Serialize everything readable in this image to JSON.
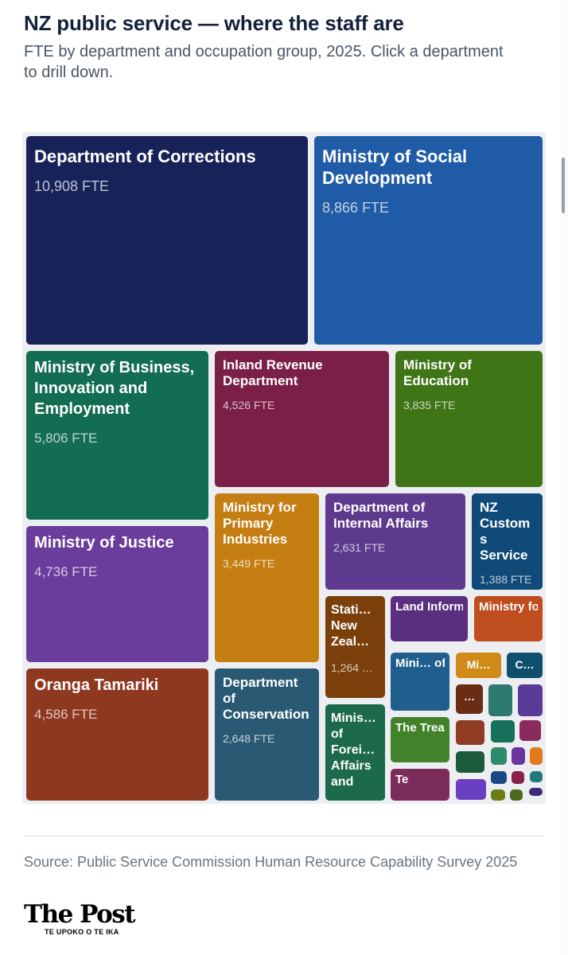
{
  "header": {
    "title": "NZ public service — where the staff are",
    "subtitle": "FTE by department and occupation group, 2025. Click a department to drill down."
  },
  "chart_data": {
    "type": "treemap",
    "unit": "FTE",
    "items": [
      {
        "name": "Department of Corrections",
        "label": "Department of Corrections",
        "value": 10908,
        "value_label": "10,908 FTE",
        "color": "#172259"
      },
      {
        "name": "Ministry of Social Development",
        "label": "Ministry of Social Development",
        "value": 8866,
        "value_label": "8,866 FTE",
        "color": "#1f5ba6"
      },
      {
        "name": "Ministry of Business, Innovation and Employment",
        "label": "Ministry of Business, Innovation and Employment",
        "value": 5806,
        "value_label": "5,806 FTE",
        "color": "#136d52"
      },
      {
        "name": "Inland Revenue Department",
        "label": "Inland Revenue Department",
        "value": 4526,
        "value_label": "4,526 FTE",
        "color": "#7a1f47"
      },
      {
        "name": "Ministry of Education",
        "label": "Ministry of Education",
        "value": 3835,
        "value_label": "3,835 FTE",
        "color": "#3f7517"
      },
      {
        "name": "Ministry of Justice",
        "label": "Ministry of Justice",
        "value": 4736,
        "value_label": "4,736 FTE",
        "color": "#6a3c9c"
      },
      {
        "name": "Ministry for Primary Industries",
        "label": "Ministry for Primary Industries",
        "value": 3449,
        "value_label": "3,449 FTE",
        "color": "#c47e12"
      },
      {
        "name": "Department of Internal Affairs",
        "label": "Department of Internal Affairs",
        "value": 2631,
        "value_label": "2,631 FTE",
        "color": "#5d3a8e"
      },
      {
        "name": "NZ Customs Service",
        "label": "NZ Customs Service",
        "value": 1388,
        "value_label": "1,388 FTE",
        "color": "#0f4a78"
      },
      {
        "name": "Oranga Tamariki",
        "label": "Oranga Tamariki",
        "value": 4586,
        "value_label": "4,586 FTE",
        "color": "#8f3820"
      },
      {
        "name": "Department of Conservation",
        "label": "Department of Conservation",
        "value": 2648,
        "value_label": "2,648 FTE",
        "color": "#2a5a73"
      },
      {
        "name": "Stati… New Zeal…",
        "label": "Stati… New Zeal…",
        "value": 1264,
        "value_label": "1,264 …",
        "color": "#7b3f0c"
      },
      {
        "name": "Land Informa…",
        "label": "Land Informa…",
        "value": null,
        "value_label": "",
        "color": "#5a2f80"
      },
      {
        "name": "Ministry for the",
        "label": "Ministry for the",
        "value": null,
        "value_label": "",
        "color": "#c04d1e"
      },
      {
        "name": "Mini… of Health",
        "label": "Mini… of Health",
        "value": null,
        "value_label": "",
        "color": "#1f5e8d"
      },
      {
        "name": "Minis… of Forei… Affairs and",
        "label": "Minis… of Forei… Affairs and",
        "value": null,
        "value_label": "",
        "color": "#1c6a4b"
      },
      {
        "name": "The Trea…",
        "label": "The Trea…",
        "value": null,
        "value_label": "",
        "color": "#42822a"
      },
      {
        "name": "Te",
        "label": "Te",
        "value": null,
        "value_label": "",
        "color": "#7c2c5a"
      },
      {
        "name": "Mi…",
        "label": "Mi…",
        "value": null,
        "value_label": "",
        "color": "#d08a17"
      },
      {
        "name": "C…",
        "label": "C…",
        "value": null,
        "value_label": "",
        "color": "#0f4f6e"
      },
      {
        "name": "…",
        "label": "…",
        "value": null,
        "value_label": "",
        "color": "#6a2c12"
      },
      {
        "name": "",
        "label": "",
        "value": null,
        "value_label": "",
        "color": "#2e7a70"
      },
      {
        "name": "",
        "label": "",
        "value": null,
        "value_label": "",
        "color": "#5a3b98"
      },
      {
        "name": "",
        "label": "",
        "value": null,
        "value_label": "",
        "color": "#8f3c22"
      },
      {
        "name": "",
        "label": "",
        "value": null,
        "value_label": "",
        "color": "#177059"
      },
      {
        "name": "",
        "label": "",
        "value": null,
        "value_label": "",
        "color": "#8a2a5e"
      },
      {
        "name": "",
        "label": "",
        "value": null,
        "value_label": "",
        "color": "#1c5b3a"
      },
      {
        "name": "",
        "label": "",
        "value": null,
        "value_label": "",
        "color": "#2e8a6a"
      },
      {
        "name": "",
        "label": "",
        "value": null,
        "value_label": "",
        "color": "#6b35a0"
      },
      {
        "name": "",
        "label": "",
        "value": null,
        "value_label": "",
        "color": "#e07a1a"
      },
      {
        "name": "",
        "label": "",
        "value": null,
        "value_label": "",
        "color": "#6a3fc2"
      },
      {
        "name": "",
        "label": "",
        "value": null,
        "value_label": "",
        "color": "#1a4a86"
      },
      {
        "name": "",
        "label": "",
        "value": null,
        "value_label": "",
        "color": "#8a2248"
      },
      {
        "name": "",
        "label": "",
        "value": null,
        "value_label": "",
        "color": "#1f7a7a"
      },
      {
        "name": "",
        "label": "",
        "value": null,
        "value_label": "",
        "color": "#6b7d14"
      },
      {
        "name": "",
        "label": "",
        "value": null,
        "value_label": "",
        "color": "#4a6a1e"
      },
      {
        "name": "",
        "label": "",
        "value": null,
        "value_label": "",
        "color": "#3a2a7a"
      }
    ]
  },
  "footer": {
    "source": "Source: Public Service Commission Human Resource Capability Survey 2025",
    "logo_name": "The Post",
    "logo_subtitle": "TE UPOKO O TE IKA"
  }
}
